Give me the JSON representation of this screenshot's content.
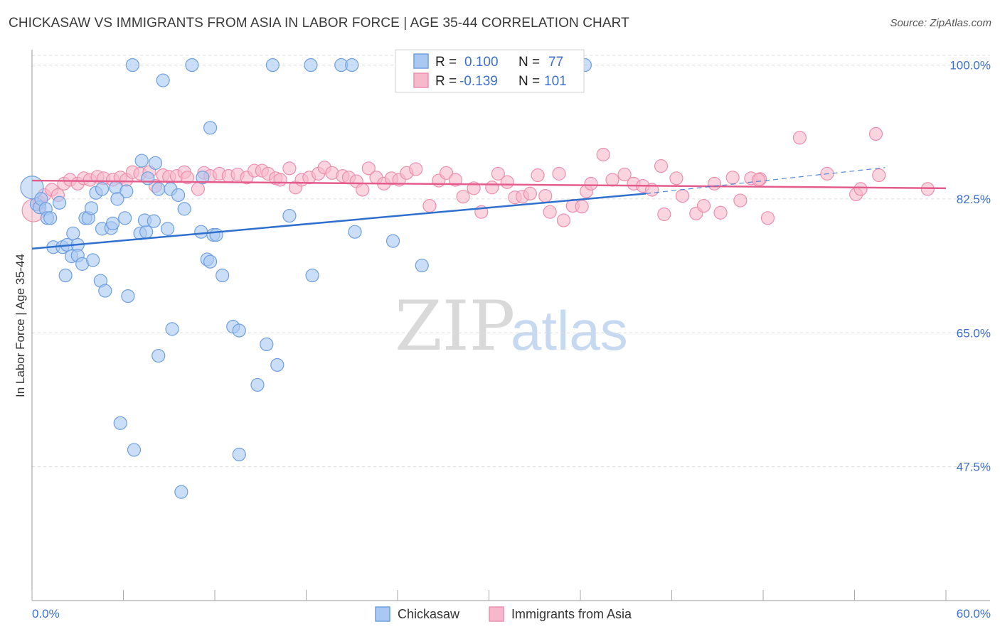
{
  "title": "CHICKASAW VS IMMIGRANTS FROM ASIA IN LABOR FORCE | AGE 35-44 CORRELATION CHART",
  "source": "Source: ZipAtlas.com",
  "watermark": {
    "zip": "ZIP",
    "atlas": "atlas"
  },
  "colors": {
    "blue_fill": "#a9c8f2",
    "blue_stroke": "#6f9fe0",
    "blue_line": "#2f6fce",
    "pink_fill": "#f6b9cc",
    "pink_stroke": "#ec8fae",
    "pink_line": "#e45c8c",
    "tick_text": "#3c6fcf",
    "grid": "#dcdcdc"
  },
  "legend_box": {
    "rows": [
      {
        "r_label": "R =",
        "r_value": "0.100",
        "n_label": "N =",
        "n_value": "77",
        "color": "blue"
      },
      {
        "r_label": "R =",
        "r_value": "-0.139",
        "n_label": "N =",
        "n_value": "101",
        "color": "pink"
      }
    ]
  },
  "bottom_legend": [
    {
      "label": "Chickasaw",
      "color": "blue"
    },
    {
      "label": "Immigrants from Asia",
      "color": "pink"
    }
  ],
  "chart_data": {
    "type": "scatter",
    "ylabel": "In Labor Force | Age 35-44",
    "xlabel": "",
    "xlim": [
      0,
      60
    ],
    "ylim": [
      30,
      102
    ],
    "x_tick_labels": [
      "0.0%",
      "60.0%"
    ],
    "y_ticks": [
      {
        "value": 100.0,
        "label": "100.0%"
      },
      {
        "value": 82.5,
        "label": "82.5%"
      },
      {
        "value": 65.0,
        "label": "65.0%"
      },
      {
        "value": 47.5,
        "label": "47.5%"
      }
    ],
    "grid": true,
    "series": [
      {
        "name": "Chickasaw",
        "color": "blue",
        "trend": {
          "x0": 0,
          "y0": 76.0,
          "x1": 40.3,
          "y1": 83.2,
          "dash_x1": 56.0,
          "dash_y1": 86.6
        },
        "points": [
          [
            0.0,
            84.0,
            1
          ],
          [
            0.3,
            81.8,
            0
          ],
          [
            0.5,
            81.4,
            0
          ],
          [
            0.6,
            82.5,
            0
          ],
          [
            0.9,
            81.2,
            0
          ],
          [
            1.0,
            80.0,
            0
          ],
          [
            1.2,
            80.0,
            0
          ],
          [
            1.8,
            82.0,
            0
          ],
          [
            1.4,
            76.2,
            0
          ],
          [
            2.0,
            76.2,
            0
          ],
          [
            2.3,
            76.5,
            0
          ],
          [
            2.7,
            78.0,
            0
          ],
          [
            3.0,
            76.5,
            0
          ],
          [
            2.6,
            75.0,
            0
          ],
          [
            3.0,
            75.1,
            0
          ],
          [
            3.3,
            74.0,
            0
          ],
          [
            2.2,
            72.5,
            0
          ],
          [
            4.0,
            74.5,
            0
          ],
          [
            4.5,
            71.8,
            0
          ],
          [
            4.8,
            70.5,
            0
          ],
          [
            6.3,
            69.8,
            0
          ],
          [
            3.5,
            80.0,
            0
          ],
          [
            3.7,
            80.0,
            0
          ],
          [
            3.9,
            81.3,
            0
          ],
          [
            4.2,
            83.3,
            0
          ],
          [
            4.6,
            83.8,
            0
          ],
          [
            5.5,
            84.0,
            0
          ],
          [
            6.2,
            83.5,
            0
          ],
          [
            5.6,
            82.5,
            0
          ],
          [
            4.6,
            78.6,
            0
          ],
          [
            5.2,
            78.7,
            0
          ],
          [
            5.3,
            79.3,
            0
          ],
          [
            6.1,
            80.0,
            0
          ],
          [
            7.1,
            78.0,
            0
          ],
          [
            7.5,
            78.2,
            0
          ],
          [
            7.4,
            79.7,
            0
          ],
          [
            8.0,
            79.6,
            0
          ],
          [
            8.9,
            78.6,
            0
          ],
          [
            8.3,
            83.8,
            0
          ],
          [
            9.1,
            83.8,
            0
          ],
          [
            9.6,
            83.0,
            0
          ],
          [
            10.0,
            81.2,
            0
          ],
          [
            7.2,
            87.5,
            0
          ],
          [
            7.6,
            85.2,
            0
          ],
          [
            8.1,
            87.2,
            0
          ],
          [
            11.1,
            78.2,
            0
          ],
          [
            11.9,
            77.8,
            0
          ],
          [
            12.1,
            77.8,
            0
          ],
          [
            11.2,
            85.3,
            0
          ],
          [
            11.5,
            74.6,
            0
          ],
          [
            11.7,
            74.3,
            0
          ],
          [
            12.5,
            72.5,
            0
          ],
          [
            11.7,
            91.8,
            0
          ],
          [
            6.6,
            100.0,
            0
          ],
          [
            8.6,
            98.0,
            0
          ],
          [
            10.5,
            100.0,
            0
          ],
          [
            15.8,
            100.0,
            0
          ],
          [
            18.3,
            100.0,
            0
          ],
          [
            20.3,
            100.0,
            0
          ],
          [
            21.0,
            100.0,
            0
          ],
          [
            36.3,
            100.0,
            0
          ],
          [
            16.9,
            80.3,
            0
          ],
          [
            21.2,
            78.2,
            0
          ],
          [
            23.7,
            77.0,
            0
          ],
          [
            18.4,
            72.5,
            0
          ],
          [
            25.6,
            73.8,
            0
          ],
          [
            9.2,
            65.5,
            0
          ],
          [
            13.2,
            65.8,
            0
          ],
          [
            13.6,
            65.3,
            0
          ],
          [
            15.4,
            63.5,
            0
          ],
          [
            8.3,
            62.0,
            0
          ],
          [
            16.1,
            60.8,
            0
          ],
          [
            14.8,
            58.2,
            0
          ],
          [
            5.8,
            53.2,
            0
          ],
          [
            6.7,
            49.7,
            0
          ],
          [
            13.6,
            49.1,
            0
          ],
          [
            9.8,
            44.2,
            0
          ]
        ]
      },
      {
        "name": "Immigrants from Asia",
        "color": "pink",
        "trend": {
          "x0": 0,
          "y0": 84.9,
          "x1": 60.0,
          "y1": 83.9
        },
        "points": [
          [
            0.1,
            81.0,
            1
          ],
          [
            0.5,
            82.0,
            0
          ],
          [
            0.8,
            83.0,
            0
          ],
          [
            1.3,
            83.7,
            0
          ],
          [
            1.7,
            83.0,
            0
          ],
          [
            2.1,
            84.5,
            0
          ],
          [
            2.5,
            85.0,
            0
          ],
          [
            3.0,
            84.5,
            0
          ],
          [
            3.4,
            85.2,
            0
          ],
          [
            3.8,
            85.0,
            0
          ],
          [
            4.3,
            85.4,
            0
          ],
          [
            4.7,
            85.2,
            0
          ],
          [
            5.3,
            85.0,
            0
          ],
          [
            5.8,
            85.3,
            0
          ],
          [
            6.2,
            85.0,
            0
          ],
          [
            6.6,
            86.0,
            0
          ],
          [
            7.1,
            85.8,
            0
          ],
          [
            7.7,
            86.0,
            0
          ],
          [
            8.1,
            84.2,
            0
          ],
          [
            8.6,
            85.6,
            0
          ],
          [
            9.0,
            85.4,
            0
          ],
          [
            9.5,
            85.5,
            0
          ],
          [
            10.0,
            86.0,
            0
          ],
          [
            10.2,
            85.3,
            0
          ],
          [
            10.9,
            83.8,
            0
          ],
          [
            11.3,
            85.9,
            0
          ],
          [
            11.7,
            85.5,
            0
          ],
          [
            12.3,
            85.8,
            0
          ],
          [
            12.9,
            85.5,
            0
          ],
          [
            13.5,
            85.7,
            0
          ],
          [
            14.1,
            85.3,
            0
          ],
          [
            14.6,
            86.2,
            0
          ],
          [
            15.1,
            86.2,
            0
          ],
          [
            15.5,
            85.8,
            0
          ],
          [
            16.0,
            85.2,
            0
          ],
          [
            16.3,
            85.0,
            0
          ],
          [
            16.9,
            86.5,
            0
          ],
          [
            17.3,
            84.0,
            0
          ],
          [
            17.7,
            85.0,
            0
          ],
          [
            18.2,
            85.3,
            0
          ],
          [
            18.8,
            85.8,
            0
          ],
          [
            19.2,
            86.6,
            0
          ],
          [
            19.7,
            85.9,
            0
          ],
          [
            20.4,
            85.5,
            0
          ],
          [
            20.8,
            85.3,
            0
          ],
          [
            21.3,
            84.8,
            0
          ],
          [
            21.7,
            83.7,
            0
          ],
          [
            22.1,
            86.5,
            0
          ],
          [
            22.6,
            85.3,
            0
          ],
          [
            23.1,
            84.5,
            0
          ],
          [
            23.6,
            85.2,
            0
          ],
          [
            24.1,
            85.0,
            0
          ],
          [
            24.6,
            85.9,
            0
          ],
          [
            25.2,
            86.4,
            0
          ],
          [
            26.1,
            81.6,
            0
          ],
          [
            26.7,
            84.9,
            0
          ],
          [
            27.2,
            85.9,
            0
          ],
          [
            27.8,
            85.0,
            0
          ],
          [
            28.3,
            82.8,
            0
          ],
          [
            29.0,
            83.9,
            0
          ],
          [
            29.5,
            80.8,
            0
          ],
          [
            30.2,
            84.0,
            0
          ],
          [
            30.6,
            85.8,
            0
          ],
          [
            31.2,
            84.7,
            0
          ],
          [
            31.7,
            82.7,
            0
          ],
          [
            32.2,
            82.8,
            0
          ],
          [
            32.7,
            83.2,
            0
          ],
          [
            33.2,
            85.6,
            0
          ],
          [
            33.7,
            82.9,
            0
          ],
          [
            34.0,
            80.8,
            0
          ],
          [
            34.6,
            85.8,
            0
          ],
          [
            34.9,
            79.7,
            0
          ],
          [
            35.5,
            81.6,
            0
          ],
          [
            36.1,
            81.5,
            0
          ],
          [
            36.4,
            83.5,
            0
          ],
          [
            36.7,
            84.5,
            0
          ],
          [
            37.5,
            88.3,
            0
          ],
          [
            38.1,
            85.0,
            0
          ],
          [
            38.9,
            85.7,
            0
          ],
          [
            39.5,
            84.5,
            0
          ],
          [
            40.1,
            84.2,
            0
          ],
          [
            40.7,
            83.7,
            0
          ],
          [
            41.3,
            86.8,
            0
          ],
          [
            41.5,
            80.5,
            0
          ],
          [
            42.3,
            85.2,
            0
          ],
          [
            42.7,
            82.9,
            0
          ],
          [
            43.6,
            80.6,
            0
          ],
          [
            44.1,
            81.6,
            0
          ],
          [
            44.8,
            84.5,
            0
          ],
          [
            45.2,
            80.7,
            0
          ],
          [
            46.0,
            85.3,
            0
          ],
          [
            46.5,
            82.3,
            0
          ],
          [
            47.2,
            85.2,
            0
          ],
          [
            47.8,
            85.1,
            0
          ],
          [
            48.3,
            80.0,
            0
          ],
          [
            50.4,
            90.5,
            0
          ],
          [
            52.2,
            85.8,
            0
          ],
          [
            54.1,
            83.1,
            0
          ],
          [
            54.4,
            83.8,
            0
          ],
          [
            55.4,
            91.0,
            0
          ],
          [
            55.6,
            85.6,
            0
          ],
          [
            58.8,
            83.8,
            0
          ],
          [
            47.7,
            85.0,
            0
          ]
        ]
      }
    ]
  }
}
